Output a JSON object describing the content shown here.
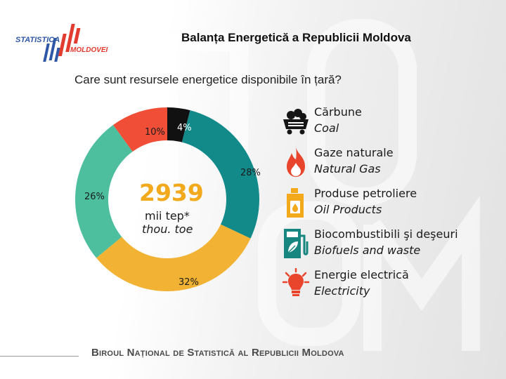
{
  "header": {
    "title": "Balanța Energetică a Republicii Moldova",
    "logo_line1": "STATISTICA",
    "logo_line2": "MOLDOVEI"
  },
  "question": "Care sunt resursele energetice disponibile în țară?",
  "chart_data": {
    "type": "pie",
    "variant": "donut",
    "center_value": "2939",
    "center_unit_ro": "mii tep*",
    "center_unit_en": "thou. toe",
    "slices": [
      {
        "label_ro": "Cărbune",
        "label_en": "Coal",
        "value": 4,
        "display": "4%",
        "color": "#111111"
      },
      {
        "label_ro": "Gaze naturale",
        "label_en": "Natural Gas",
        "value": 28,
        "display": "28%",
        "color": "#138a8a"
      },
      {
        "label_ro": "Produse petroliere",
        "label_en": "Oil Products",
        "value": 32,
        "display": "32%",
        "color": "#f2b233"
      },
      {
        "label_ro": "Biocombustibili şi deşeuri",
        "label_en": "Biofuels and waste",
        "value": 26,
        "display": "26%",
        "color": "#4dbf9e"
      },
      {
        "label_ro": "Energie electrică",
        "label_en": "Electricity",
        "value": 10,
        "display": "10%",
        "color": "#f04e37"
      }
    ]
  },
  "legend": {
    "items": [
      {
        "ro": "Cărbune",
        "en": "Coal",
        "icon": "coal-cart-icon"
      },
      {
        "ro": "Gaze naturale",
        "en": "Natural Gas",
        "icon": "flame-icon"
      },
      {
        "ro": "Produse petroliere",
        "en": "Oil Products",
        "icon": "oil-canister-icon"
      },
      {
        "ro": "Biocombustibili şi deşeuri",
        "en": "Biofuels and waste",
        "icon": "biofuel-pump-icon"
      },
      {
        "ro": "Energie electrică",
        "en": "Electricity",
        "icon": "light-bulb-icon"
      }
    ]
  },
  "colors": {
    "icon_dark": "#151515",
    "icon_red": "#e8452c",
    "icon_orange": "#f2a91c",
    "icon_teal": "#16867f"
  },
  "footer": {
    "text": "Biroul Național de Statistică al Republicii Moldova"
  }
}
